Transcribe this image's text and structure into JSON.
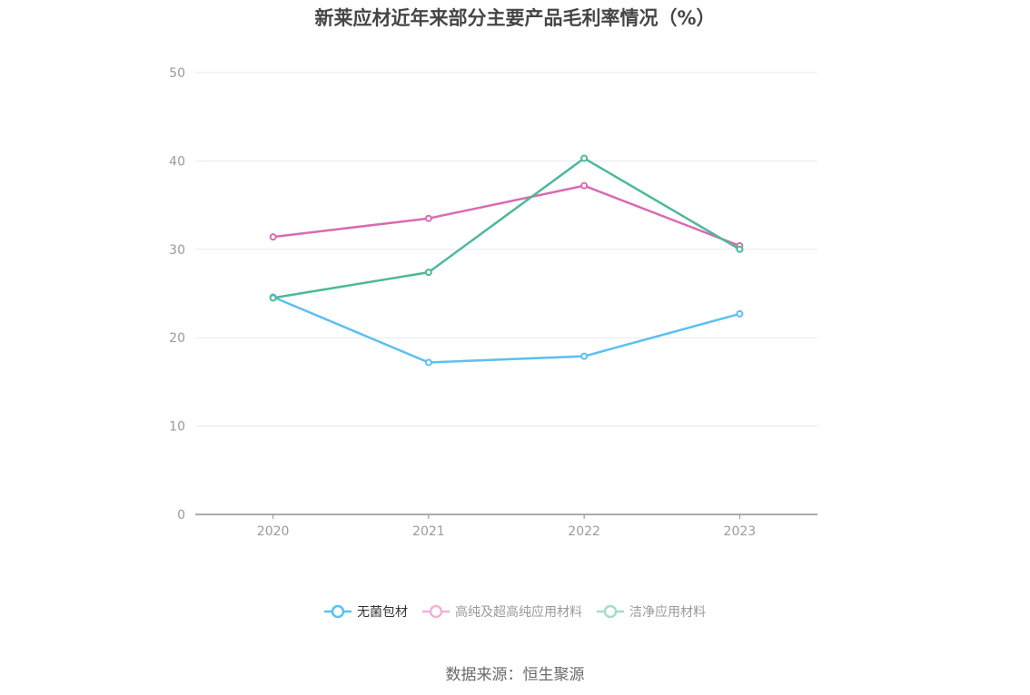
{
  "title": "新莱应材近年来部分主要产品毛利率情况（%）",
  "source": "数据来源：恒生聚源",
  "colors": {
    "series_0": "#5bc0f0",
    "series_1": "#d96bb1",
    "series_2": "#4db89a",
    "grid": "#e6e9f0",
    "axis": "#8a8f99"
  },
  "legend": [
    {
      "label": "无菌包材",
      "color": "#5bc0f0",
      "active": true
    },
    {
      "label": "高纯及超高纯应用材料",
      "color": "#efb3d8",
      "active": false
    },
    {
      "label": "洁净应用材料",
      "color": "#a5dccb",
      "active": false
    }
  ],
  "chart_data": {
    "type": "line",
    "title": "新莱应材近年来部分主要产品毛利率情况（%）",
    "xlabel": "",
    "ylabel": "",
    "categories": [
      "2020",
      "2021",
      "2022",
      "2023"
    ],
    "ylim": [
      0,
      50
    ],
    "yticks": [
      0,
      10,
      20,
      30,
      40,
      50
    ],
    "grid": true,
    "legend_position": "bottom",
    "series": [
      {
        "name": "无菌包材",
        "values": [
          24.6,
          17.2,
          17.9,
          22.7
        ]
      },
      {
        "name": "高纯及超高纯应用材料",
        "values": [
          31.4,
          33.5,
          37.2,
          30.4
        ]
      },
      {
        "name": "洁净应用材料",
        "values": [
          24.5,
          27.4,
          40.3,
          30.0
        ]
      }
    ]
  }
}
